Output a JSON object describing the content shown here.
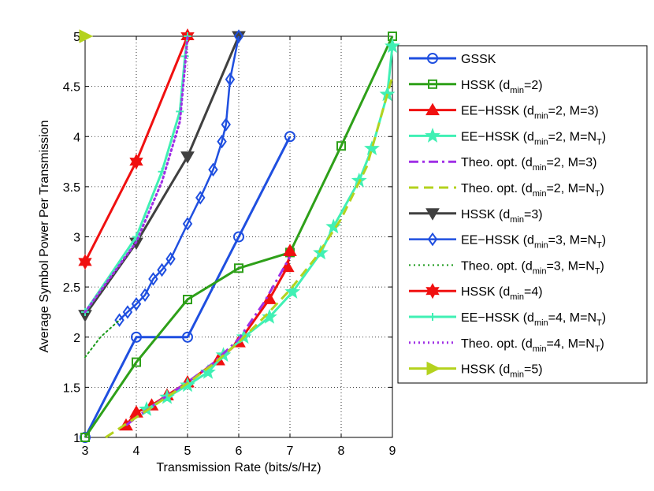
{
  "chart_data": {
    "type": "line",
    "title": "",
    "xlabel": "Transmission Rate (bits/s/Hz)",
    "ylabel": "Average Symbol Power Per Transmission",
    "xlim": [
      3,
      9
    ],
    "ylim": [
      1,
      5
    ],
    "xticks": [
      "3",
      "4",
      "5",
      "6",
      "7",
      "8",
      "9"
    ],
    "yticks": [
      "1",
      "1.5",
      "2",
      "2.5",
      "3",
      "3.5",
      "4",
      "4.5",
      "5"
    ],
    "grid": true,
    "legend_position": "right",
    "series": [
      {
        "name": "GSSK",
        "legend": [
          {
            "t": "GSSK"
          }
        ],
        "color": "#1f4fe0",
        "marker": "circle",
        "dash": "solid",
        "width": 3,
        "x": [
          3,
          4,
          5,
          6,
          7
        ],
        "y": [
          1,
          2,
          2,
          3,
          4
        ]
      },
      {
        "name": "HSSK (dmin=2)",
        "legend": [
          {
            "t": "HSSK (d"
          },
          {
            "t": "min",
            "sub": true
          },
          {
            "t": "=2)"
          }
        ],
        "color": "#2ea019",
        "marker": "square",
        "dash": "solid",
        "width": 3,
        "x": [
          3,
          4,
          5,
          6,
          7,
          8,
          9
        ],
        "y": [
          1,
          1.75,
          2.375,
          2.6875,
          2.84375,
          3.90625,
          5
        ]
      },
      {
        "name": "EE-HSSK (dmin=2, M=3)",
        "legend": [
          {
            "t": "EE−HSSK (d"
          },
          {
            "t": "min",
            "sub": true
          },
          {
            "t": "=2, M=3)"
          }
        ],
        "color": "#f01010",
        "marker": "triangle-up",
        "dash": "solid",
        "width": 3,
        "x": [
          3.8,
          4,
          4.3,
          4.6,
          5,
          5.6,
          6,
          6.6,
          6.95,
          7
        ],
        "y": [
          1.12,
          1.25,
          1.32,
          1.42,
          1.55,
          1.77,
          1.95,
          2.38,
          2.7,
          2.86
        ]
      },
      {
        "name": "EE-HSSK (dmin=2, M=NT)",
        "legend": [
          {
            "t": "EE−HSSK (d"
          },
          {
            "t": "min",
            "sub": true
          },
          {
            "t": "=2, M=N"
          },
          {
            "t": "T",
            "sub": true
          },
          {
            "t": ")"
          }
        ],
        "color": "#40f0b4",
        "marker": "star",
        "dash": "solid",
        "width": 3,
        "x": [
          4.2,
          4.6,
          5,
          5.4,
          5.7,
          6.1,
          6.6,
          7.05,
          7.6,
          7.85,
          8.35,
          8.6,
          8.9,
          9
        ],
        "y": [
          1.28,
          1.4,
          1.52,
          1.65,
          1.82,
          2.0,
          2.2,
          2.45,
          2.84,
          3.1,
          3.56,
          3.88,
          4.42,
          4.9
        ]
      },
      {
        "name": "Theo. opt. (dmin=2, M=3)",
        "legend": [
          {
            "t": "Theo. opt. (d"
          },
          {
            "t": "min",
            "sub": true
          },
          {
            "t": "=2, M=3)"
          }
        ],
        "color": "#a030e6",
        "marker": "none",
        "dash": "dashdot",
        "width": 3,
        "x": [
          3.8,
          4,
          4.5,
          5,
          5.5,
          6,
          6.5,
          7
        ],
        "y": [
          1.12,
          1.2,
          1.38,
          1.55,
          1.74,
          1.98,
          2.35,
          2.8
        ]
      },
      {
        "name": "Theo. opt. (dmin=2, M=NT)",
        "legend": [
          {
            "t": "Theo. opt. (d"
          },
          {
            "t": "min",
            "sub": true
          },
          {
            "t": "=2, M=N"
          },
          {
            "t": "T",
            "sub": true
          },
          {
            "t": ")"
          }
        ],
        "color": "#b4d21e",
        "marker": "none",
        "dash": "dashed",
        "width": 3,
        "x": [
          3.4,
          4,
          4.5,
          5,
          5.5,
          6,
          6.5,
          7,
          7.5,
          8,
          8.5,
          9
        ],
        "y": [
          1.0,
          1.2,
          1.37,
          1.54,
          1.73,
          1.95,
          2.2,
          2.47,
          2.79,
          3.18,
          3.7,
          4.6
        ]
      },
      {
        "name": "HSSK (dmin=3)",
        "legend": [
          {
            "t": "HSSK (d"
          },
          {
            "t": "min",
            "sub": true
          },
          {
            "t": "=3)"
          }
        ],
        "color": "#404040",
        "marker": "triangle-down",
        "dash": "solid",
        "width": 3,
        "x": [
          3,
          4,
          5,
          6
        ],
        "y": [
          2.22,
          2.94,
          3.8,
          5
        ]
      },
      {
        "name": "EE-HSSK (dmin=3, M=NT)",
        "legend": [
          {
            "t": "EE−HSSK (d"
          },
          {
            "t": "min",
            "sub": true
          },
          {
            "t": "=3, M=N"
          },
          {
            "t": "T",
            "sub": true
          },
          {
            "t": ")"
          }
        ],
        "color": "#1f4fe0",
        "marker": "diamond",
        "dash": "solid",
        "width": 2.5,
        "x": [
          3.67,
          3.83,
          4,
          4.17,
          4.33,
          4.5,
          4.67,
          5,
          5.25,
          5.5,
          5.67,
          5.75,
          5.83,
          6
        ],
        "y": [
          2.17,
          2.25,
          2.33,
          2.42,
          2.58,
          2.67,
          2.78,
          3.13,
          3.39,
          3.67,
          3.95,
          4.12,
          4.57,
          5
        ]
      },
      {
        "name": "Theo. opt. (dmin=3, M=NT)",
        "legend": [
          {
            "t": "Theo. opt. (d"
          },
          {
            "t": "min",
            "sub": true
          },
          {
            "t": "=3, M=N"
          },
          {
            "t": "T",
            "sub": true
          },
          {
            "t": ")"
          }
        ],
        "color": "#1a9a1a",
        "marker": "none",
        "dash": "dotted",
        "width": 2,
        "x": [
          3,
          3.3,
          3.67
        ],
        "y": [
          1.8,
          2.0,
          2.17
        ]
      },
      {
        "name": "HSSK (dmin=4)",
        "legend": [
          {
            "t": "HSSK (d"
          },
          {
            "t": "min",
            "sub": true
          },
          {
            "t": "=4)"
          }
        ],
        "color": "#f01010",
        "marker": "hexagram",
        "dash": "solid",
        "width": 3,
        "x": [
          3,
          4,
          5
        ],
        "y": [
          2.75,
          3.75,
          5
        ]
      },
      {
        "name": "EE-HSSK (dmin=4, M=NT)",
        "legend": [
          {
            "t": "EE−HSSK (d"
          },
          {
            "t": "min",
            "sub": true
          },
          {
            "t": "=4, M=N"
          },
          {
            "t": "T",
            "sub": true
          },
          {
            "t": ")"
          }
        ],
        "color": "#40f0b4",
        "marker": "plus",
        "dash": "solid",
        "width": 3,
        "x": [
          3,
          4,
          4.5,
          4.85,
          4.95,
          5
        ],
        "y": [
          2.25,
          3.0,
          3.65,
          4.25,
          4.8,
          5
        ]
      },
      {
        "name": "Theo. opt. (dmin=4, M=NT)",
        "legend": [
          {
            "t": "Theo. opt. (d"
          },
          {
            "t": "min",
            "sub": true
          },
          {
            "t": "=4, M=N"
          },
          {
            "t": "T",
            "sub": true
          },
          {
            "t": ")"
          }
        ],
        "color": "#a030e6",
        "marker": "none",
        "dash": "dotted",
        "width": 3,
        "x": [
          3,
          4,
          4.5,
          4.85,
          4.95,
          5
        ],
        "y": [
          2.25,
          2.95,
          3.55,
          4.15,
          4.7,
          5
        ]
      },
      {
        "name": "HSSK (dmin=5)",
        "legend": [
          {
            "t": "HSSK (d"
          },
          {
            "t": "min",
            "sub": true
          },
          {
            "t": "=5)"
          }
        ],
        "color": "#b4d21e",
        "marker": "triangle-right",
        "dash": "solid",
        "width": 3,
        "x": [
          3
        ],
        "y": [
          5
        ]
      }
    ]
  }
}
